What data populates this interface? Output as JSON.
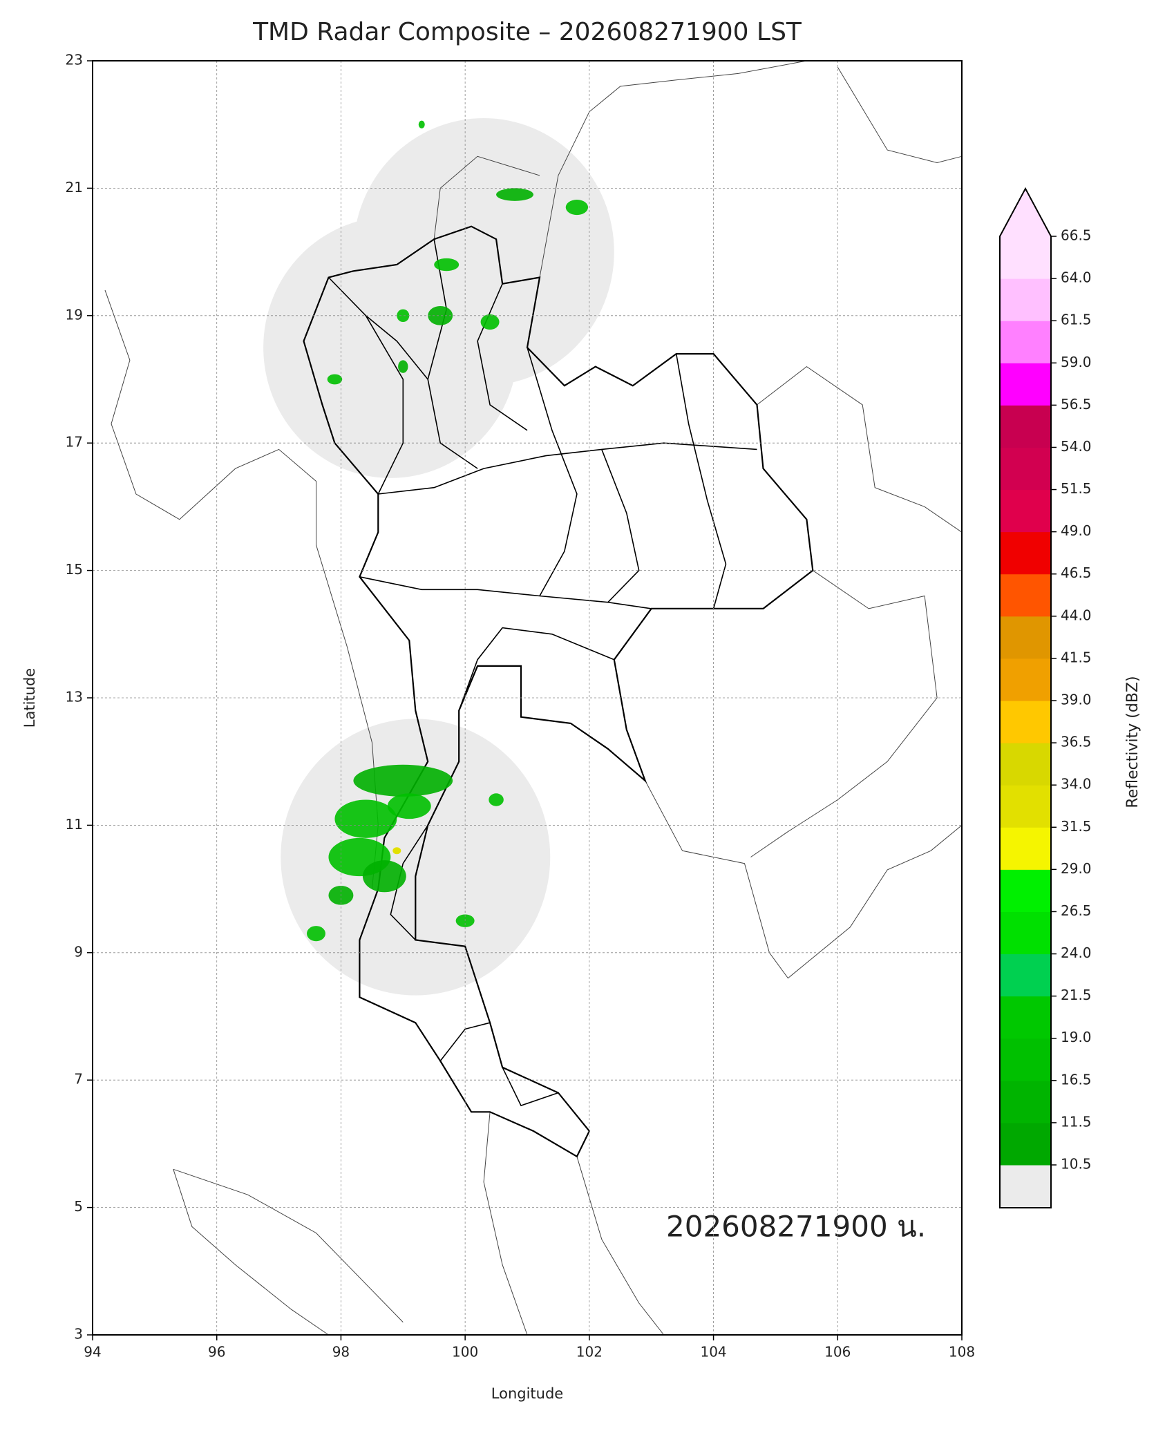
{
  "chart_data": {
    "type": "map",
    "title": "TMD Radar Composite – 202608271900 LST",
    "x_label": "Longitude",
    "y_label": "Latitude",
    "annotation": "202608271900 น.",
    "xlim": [
      94,
      108
    ],
    "xticks": [
      94,
      96,
      98,
      100,
      102,
      104,
      106,
      108
    ],
    "ylim": [
      3,
      23
    ],
    "yticks": [
      3,
      5,
      7,
      9,
      11,
      13,
      15,
      17,
      19,
      21,
      23
    ],
    "grid": true,
    "colorbar": {
      "label": "Reflectivity (dBZ)",
      "ticks": [
        10.5,
        11.5,
        16.5,
        {
          "value": 19,
          "label": "19.0"
        },
        21.5,
        {
          "value": 24,
          "label": "24.0"
        },
        26.5,
        {
          "value": 29,
          "label": "29.0"
        },
        31.5,
        {
          "value": 34,
          "label": "34.0"
        },
        36.5,
        {
          "value": 39,
          "label": "39.0"
        },
        41.5,
        {
          "value": 44,
          "label": "44.0"
        },
        46.5,
        {
          "value": 49,
          "label": "49.0"
        },
        51.5,
        {
          "value": 54,
          "label": "54.0"
        },
        56.5,
        {
          "value": 59,
          "label": "59.0"
        },
        61.5,
        {
          "value": 64,
          "label": "64.0"
        },
        66.5
      ],
      "colors": [
        "#00a800",
        "#00b400",
        "#00c000",
        "#00c800",
        "#00d050",
        "#00e000",
        "#00f000",
        "#f5f500",
        "#e2e000",
        "#d8d800",
        "#ffc800",
        "#f0a000",
        "#e09600",
        "#ff5500",
        "#f00000",
        "#e0004c",
        "#d20050",
        "#c80050",
        "#ff00ff",
        "#ff80ff",
        "#ffc0ff",
        "#ffe0ff"
      ],
      "under_color": "#ebebeb",
      "over_color": "#ffe0ff"
    }
  }
}
